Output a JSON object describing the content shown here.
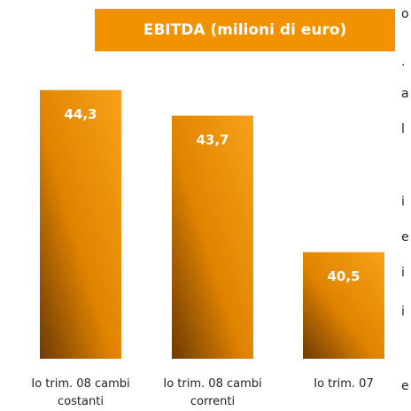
{
  "chart_data": {
    "type": "bar",
    "title": "EBITDA (milioni di euro)",
    "categories": [
      "Io trim. 08 cambi costanti",
      "Io trim. 08 cambi correnti",
      "Io trim. 07"
    ],
    "values": [
      44.3,
      43.7,
      40.5
    ],
    "value_labels": [
      "44,3",
      "43,7",
      "40,5"
    ],
    "color": "#f39200",
    "ylim": [
      38,
      45
    ]
  },
  "side_text": [
    "o",
    ".",
    "a",
    "l",
    "i",
    "e",
    "i",
    "i",
    "e"
  ]
}
